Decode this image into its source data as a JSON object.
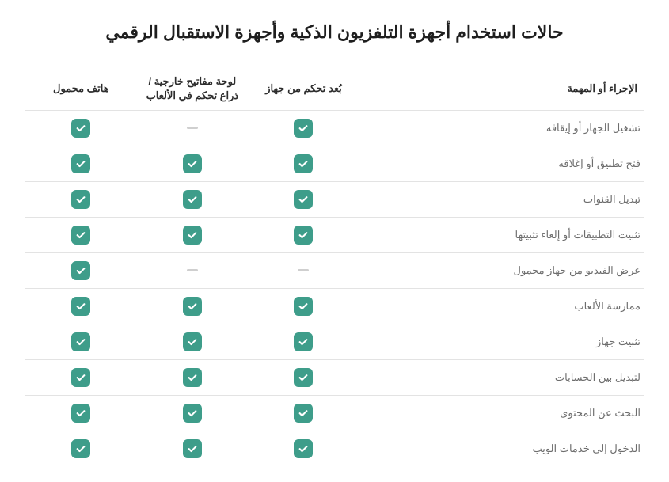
{
  "title": "حالات استخدام أجهزة التلفزيون الذكية وأجهزة الاستقبال الرقمي",
  "colors": {
    "check_bg": "#3e9d8a",
    "check_fg": "#ffffff",
    "dash": "#cfcfcf",
    "border": "#e3e3e3",
    "heading": "#2d2d2d",
    "task_text": "#6d6d6d",
    "background": "#ffffff"
  },
  "columns": {
    "task": "الإجراء أو المهمة",
    "remote": "بُعد تحكم من جهاز",
    "keyboard": "لوحة مفاتيح خارجية / ذراع تحكم في الألعاب",
    "phone": "هاتف محمول"
  },
  "rows": [
    {
      "task": "تشغيل الجهاز أو إيقافه",
      "remote": true,
      "keyboard": false,
      "phone": true
    },
    {
      "task": "فتح تطبيق أو إغلاقه",
      "remote": true,
      "keyboard": true,
      "phone": true
    },
    {
      "task": "تبديل القنوات",
      "remote": true,
      "keyboard": true,
      "phone": true
    },
    {
      "task": "تثبيت التطبيقات أو إلغاء تثبيتها",
      "remote": true,
      "keyboard": true,
      "phone": true
    },
    {
      "task": "عرض الفيديو من جهاز محمول",
      "remote": false,
      "keyboard": false,
      "phone": true
    },
    {
      "task": "ممارسة الألعاب",
      "remote": true,
      "keyboard": true,
      "phone": true
    },
    {
      "task": "تثبيت جهاز",
      "remote": true,
      "keyboard": true,
      "phone": true
    },
    {
      "task": "لتبديل بين الحسابات",
      "remote": true,
      "keyboard": true,
      "phone": true
    },
    {
      "task": "البحث عن المحتوى",
      "remote": true,
      "keyboard": true,
      "phone": true
    },
    {
      "task": "الدخول إلى خدمات الويب",
      "remote": true,
      "keyboard": true,
      "phone": true
    }
  ]
}
